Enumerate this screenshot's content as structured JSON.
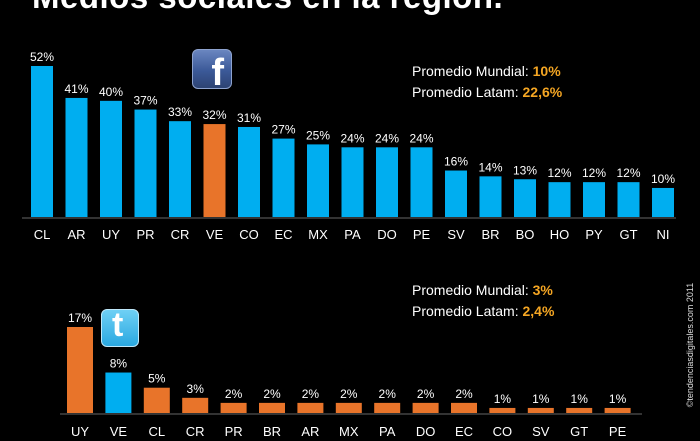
{
  "title": "Medios sociales en la región.",
  "credit": "©tendenciasdigitales.com 2011",
  "colors": {
    "default_bar": "#00aef0",
    "highlight_bar": "#e8742a",
    "accent_text": "#f5a623"
  },
  "facebook_stats": {
    "world_label": "Promedio Mundial:",
    "world_value": "10%",
    "latam_label": "Promedio Latam:",
    "latam_value": "22,6%"
  },
  "twitter_stats": {
    "world_label": "Promedio Mundial:",
    "world_value": "3%",
    "latam_label": "Promedio Latam:",
    "latam_value": "2,4%"
  },
  "chart_data": [
    {
      "type": "bar",
      "network_icon": "facebook-icon",
      "categories": [
        "CL",
        "AR",
        "UY",
        "PR",
        "CR",
        "VE",
        "CO",
        "EC",
        "MX",
        "PA",
        "DO",
        "PE",
        "SV",
        "BR",
        "BO",
        "HO",
        "PY",
        "GT",
        "NI"
      ],
      "values": [
        52,
        41,
        40,
        37,
        33,
        32,
        31,
        27,
        25,
        24,
        24,
        24,
        16,
        14,
        13,
        12,
        12,
        12,
        10
      ],
      "labels": [
        "52%",
        "41%",
        "40%",
        "37%",
        "33%",
        "32%",
        "31%",
        "27%",
        "25%",
        "24%",
        "24%",
        "24%",
        "16%",
        "14%",
        "13%",
        "12%",
        "12%",
        "12%",
        "10%"
      ],
      "highlight": [
        "VE"
      ],
      "ylim": [
        0,
        52
      ]
    },
    {
      "type": "bar",
      "network_icon": "twitter-icon",
      "categories": [
        "UY",
        "VE",
        "CL",
        "CR",
        "PR",
        "BR",
        "AR",
        "MX",
        "PA",
        "DO",
        "EC",
        "CO",
        "SV",
        "GT",
        "PE"
      ],
      "values": [
        17,
        8,
        5,
        3,
        2,
        2,
        2,
        2,
        2,
        2,
        2,
        1,
        1,
        1,
        1
      ],
      "labels": [
        "17%",
        "8%",
        "5%",
        "3%",
        "2%",
        "2%",
        "2%",
        "2%",
        "2%",
        "2%",
        "2%",
        "1%",
        "1%",
        "1%",
        "1%"
      ],
      "highlight": [
        "UY",
        "CL",
        "CR",
        "PR",
        "BR",
        "AR",
        "MX",
        "PA",
        "DO",
        "EC",
        "CO",
        "SV",
        "GT",
        "PE"
      ],
      "ylim": [
        0,
        17
      ]
    }
  ]
}
